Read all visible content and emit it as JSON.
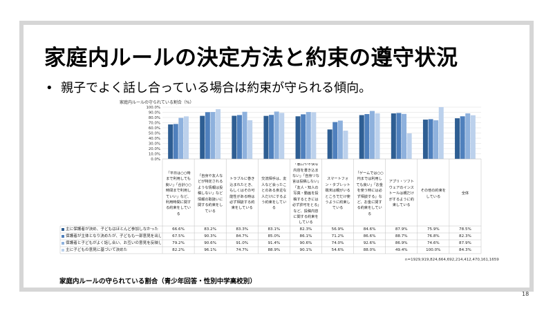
{
  "slide": {
    "title": "家庭内ルールの決定方法と約束の遵守状況",
    "bullet": "親子でよく話し合っている場合は約束が守られる傾向。",
    "footnote": "家庭内ルールの守られている割合（青少年回答・性別中学高校別）",
    "page_number": "18",
    "n_line": "n=1929,919,824,664,692,214,412,470,161,1659"
  },
  "chart_data": {
    "type": "bar",
    "title": "家庭内ルールの守られている割合（%）",
    "ylim": [
      0,
      100
    ],
    "yticks": [
      "0.0%",
      "10.0%",
      "20.0%",
      "30.0%",
      "40.0%",
      "50.0%",
      "60.0%",
      "70.0%",
      "80.0%",
      "90.0%",
      "100.0%"
    ],
    "grid": true,
    "categories": [
      "「平日は○○時まで利用しても良い」「合計○○時間まで利用していい」など、利用時間に関する約束をしている",
      "「自身や友人などが特定されるような情報は投稿しない」など情報の取扱いに関する約束をしている",
      "トラブルに巻き込まれたとき、もしくはその可能性がある時は必ず相談する約束をしている",
      "交流相手は、友人など会ったことのある身近な人だけにするよう約束をしている",
      "「悪口や不快な内容を書き込まない」「自身リな言は投稿しない」「友人・知人の写真・動画を投稿するときには必ず許可をとる」など、投稿内容に関する約束をしている",
      "スマートフォン・タブレット端末は親がいるところでだけ使うように約束している",
      "「ゲームでは○○円までは利用しても良い」「お金を使う時には必ず相談する」など、お金に関する約束をしている",
      "アプリ・ソフトウェアのインストールは親だけがするように約束している",
      "その他の約束をしている",
      "全体"
    ],
    "series": [
      {
        "name": "主に保護者が決め、子どもはほとんど参加しなかった",
        "color": "#2e5e93",
        "labels": [
          "66.6%",
          "83.2%",
          "83.3%",
          "83.1%",
          "82.3%",
          "56.9%",
          "84.6%",
          "87.9%",
          "75.9%",
          "78.5%"
        ],
        "values": [
          66.6,
          83.2,
          83.3,
          83.1,
          82.3,
          56.9,
          84.6,
          87.9,
          75.9,
          78.5
        ]
      },
      {
        "name": "保護者が主体となり決めたが、子どもも一部意見を出した",
        "color": "#4f80bd",
        "labels": [
          "67.5%",
          "90.3%",
          "84.7%",
          "85.0%",
          "86.1%",
          "71.2%",
          "86.6%",
          "88.7%",
          "76.8%",
          "82.3%"
        ],
        "values": [
          67.5,
          90.3,
          84.7,
          85.0,
          86.1,
          71.2,
          86.6,
          88.7,
          76.8,
          82.3
        ]
      },
      {
        "name": "保護者と子どもがよく話し合い、お互いの意見を反映して決めた",
        "color": "#8eb1dd",
        "labels": [
          "79.2%",
          "90.6%",
          "91.0%",
          "91.4%",
          "90.6%",
          "74.0%",
          "92.6%",
          "86.9%",
          "74.6%",
          "87.9%"
        ],
        "values": [
          79.2,
          90.6,
          91.0,
          91.4,
          90.6,
          74.0,
          92.6,
          86.9,
          74.6,
          87.9
        ]
      },
      {
        "name": "主に子どもの意見に基づいて決めた",
        "color": "#bcd1ec",
        "labels": [
          "82.2%",
          "96.1%",
          "74.7%",
          "88.9%",
          "90.1%",
          "54.6%",
          "88.0%",
          "49.4%",
          "100.0%",
          "84.3%"
        ],
        "values": [
          82.2,
          96.1,
          74.7,
          88.9,
          90.1,
          54.6,
          88.0,
          49.4,
          100.0,
          84.3
        ]
      }
    ]
  }
}
